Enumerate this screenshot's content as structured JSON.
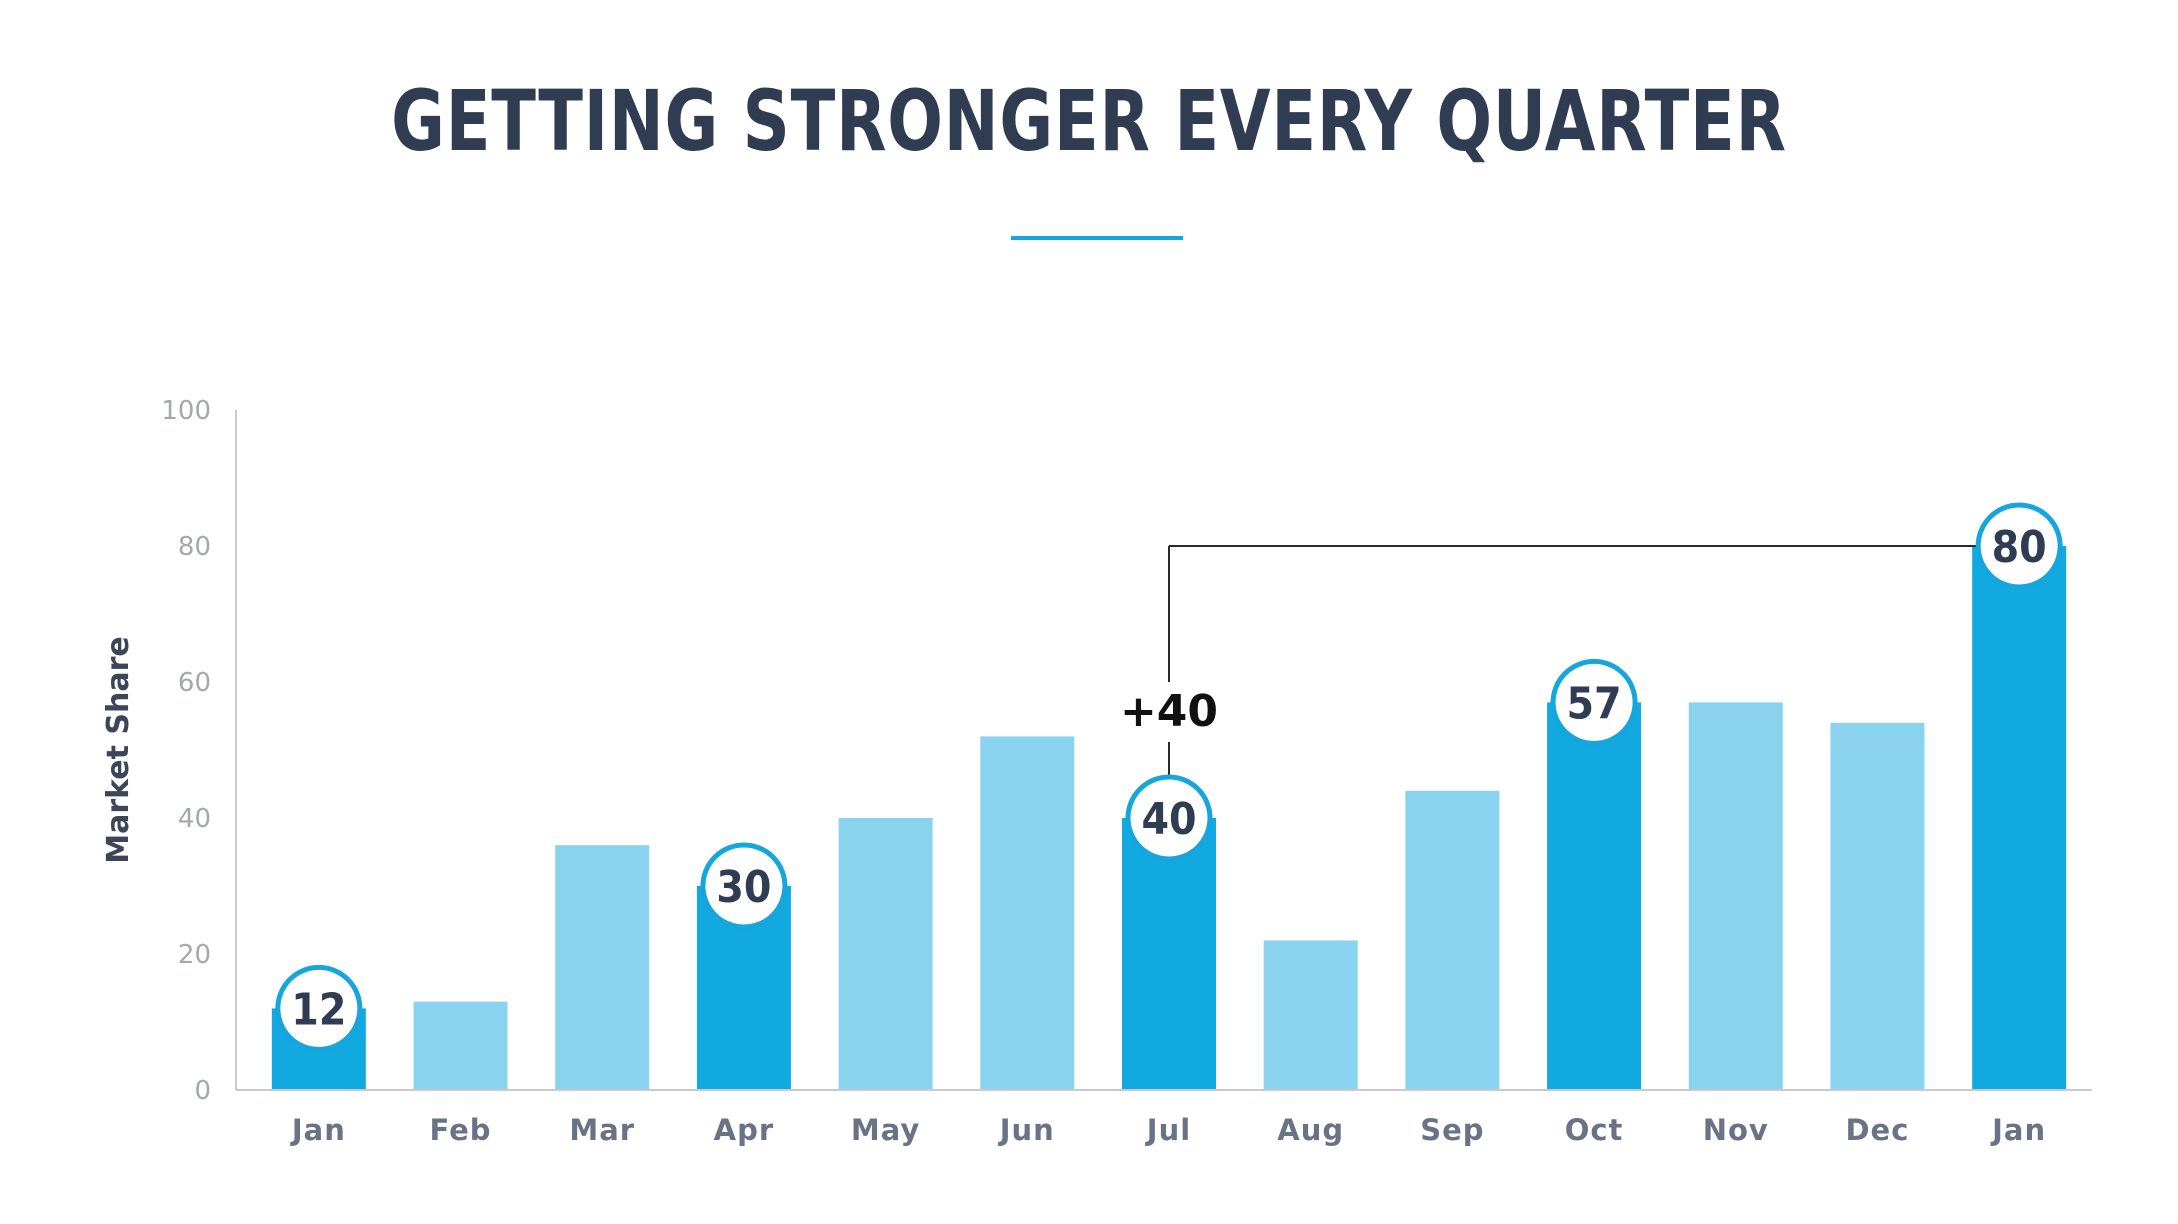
{
  "title": "GETTING STRONGER EVERY QUARTER",
  "colors": {
    "title": "#2f3c52",
    "accent": "#15a6de",
    "bar_light": "#8ad3ef",
    "bar_dark": "#12a8e0"
  },
  "chart_data": {
    "type": "bar",
    "title": "GETTING STRONGER EVERY QUARTER",
    "xlabel": "",
    "ylabel": "Market Share",
    "ylim": [
      0,
      100
    ],
    "yticks": [
      0,
      20,
      40,
      60,
      80,
      100
    ],
    "categories": [
      "Jan",
      "Feb",
      "Mar",
      "Apr",
      "May",
      "Jun",
      "Jul",
      "Aug",
      "Sep",
      "Oct",
      "Nov",
      "Dec",
      "Jan"
    ],
    "values": [
      12,
      13,
      36,
      30,
      40,
      52,
      40,
      22,
      44,
      57,
      57,
      54,
      80
    ],
    "highlighted": [
      true,
      false,
      false,
      true,
      false,
      false,
      true,
      false,
      false,
      true,
      false,
      false,
      true
    ],
    "data_labels": [
      "12",
      "",
      "",
      "30",
      "",
      "",
      "40",
      "",
      "",
      "57",
      "",
      "",
      "80"
    ],
    "grid": false,
    "annotation": {
      "text": "+40",
      "from_index": 6,
      "to_index": 12
    }
  }
}
